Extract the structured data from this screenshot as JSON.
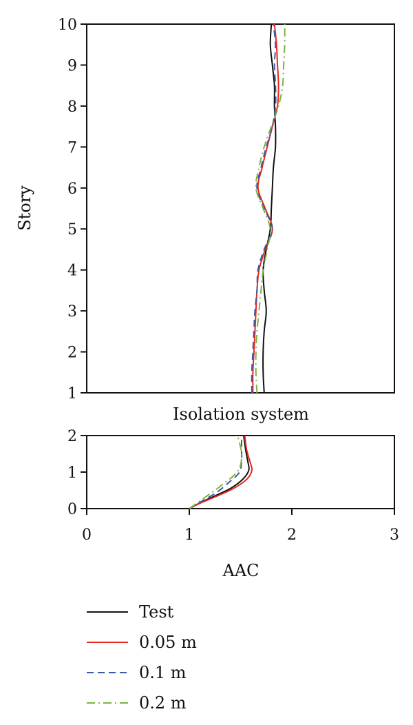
{
  "chart_data": [
    {
      "type": "line",
      "panel": "upper",
      "xlabel": "",
      "ylabel": "Story",
      "xlim": [
        0,
        3
      ],
      "ylim": [
        1,
        10
      ],
      "yticks": [
        "1",
        "2",
        "3",
        "4",
        "5",
        "6",
        "7",
        "8",
        "9",
        "10"
      ],
      "grid": false,
      "series": [
        {
          "name": "Test",
          "color": "#111111",
          "dash": "solid",
          "points": [
            [
              1.73,
              1.0
            ],
            [
              1.72,
              1.5
            ],
            [
              1.72,
              2.0
            ],
            [
              1.73,
              2.5
            ],
            [
              1.75,
              3.0
            ],
            [
              1.73,
              3.5
            ],
            [
              1.72,
              4.0
            ],
            [
              1.75,
              4.5
            ],
            [
              1.79,
              5.0
            ],
            [
              1.8,
              5.5
            ],
            [
              1.81,
              6.0
            ],
            [
              1.82,
              6.5
            ],
            [
              1.84,
              7.0
            ],
            [
              1.84,
              7.5
            ],
            [
              1.83,
              8.0
            ],
            [
              1.83,
              8.5
            ],
            [
              1.81,
              9.0
            ],
            [
              1.79,
              9.5
            ],
            [
              1.8,
              10.0
            ]
          ]
        },
        {
          "name": "0.05 m",
          "color": "#e8261c",
          "dash": "solid",
          "points": [
            [
              1.62,
              1.0
            ],
            [
              1.62,
              1.5
            ],
            [
              1.63,
              2.0
            ],
            [
              1.64,
              2.5
            ],
            [
              1.65,
              3.0
            ],
            [
              1.66,
              3.5
            ],
            [
              1.68,
              4.0
            ],
            [
              1.74,
              4.5
            ],
            [
              1.81,
              5.0
            ],
            [
              1.74,
              5.5
            ],
            [
              1.67,
              6.0
            ],
            [
              1.71,
              6.5
            ],
            [
              1.76,
              7.0
            ],
            [
              1.81,
              7.5
            ],
            [
              1.86,
              8.0
            ],
            [
              1.87,
              8.5
            ],
            [
              1.86,
              9.0
            ],
            [
              1.85,
              9.5
            ],
            [
              1.83,
              10.0
            ]
          ]
        },
        {
          "name": "0.1 m",
          "color": "#3c5aa8",
          "dash": "dashed",
          "points": [
            [
              1.61,
              1.0
            ],
            [
              1.61,
              1.5
            ],
            [
              1.62,
              2.0
            ],
            [
              1.63,
              2.5
            ],
            [
              1.64,
              3.0
            ],
            [
              1.66,
              3.5
            ],
            [
              1.67,
              4.0
            ],
            [
              1.73,
              4.5
            ],
            [
              1.81,
              5.0
            ],
            [
              1.73,
              5.5
            ],
            [
              1.66,
              6.0
            ],
            [
              1.7,
              6.5
            ],
            [
              1.75,
              7.0
            ],
            [
              1.81,
              7.5
            ],
            [
              1.84,
              8.0
            ],
            [
              1.84,
              8.5
            ],
            [
              1.83,
              9.0
            ],
            [
              1.84,
              9.5
            ],
            [
              1.82,
              10.0
            ]
          ]
        },
        {
          "name": "0.2 m",
          "color": "#7db342",
          "dash": "dashdot",
          "points": [
            [
              1.66,
              1.0
            ],
            [
              1.65,
              1.5
            ],
            [
              1.65,
              2.0
            ],
            [
              1.66,
              2.5
            ],
            [
              1.68,
              3.0
            ],
            [
              1.7,
              3.5
            ],
            [
              1.72,
              4.0
            ],
            [
              1.76,
              4.5
            ],
            [
              1.79,
              5.0
            ],
            [
              1.72,
              5.5
            ],
            [
              1.65,
              6.0
            ],
            [
              1.68,
              6.5
            ],
            [
              1.73,
              7.0
            ],
            [
              1.8,
              7.5
            ],
            [
              1.87,
              8.0
            ],
            [
              1.91,
              8.5
            ],
            [
              1.92,
              9.0
            ],
            [
              1.93,
              9.5
            ],
            [
              1.93,
              10.0
            ]
          ]
        }
      ]
    },
    {
      "type": "line",
      "panel": "lower",
      "title": "Isolation system",
      "xlabel": "AAC",
      "ylabel": "",
      "xlim": [
        0,
        3
      ],
      "ylim": [
        0,
        2
      ],
      "xticks": [
        "0",
        "1",
        "2",
        "3"
      ],
      "yticks": [
        "0",
        "1",
        "2"
      ],
      "grid": false,
      "series": [
        {
          "name": "Test",
          "color": "#111111",
          "dash": "solid",
          "points": [
            [
              1.0,
              0.0
            ],
            [
              1.1,
              0.15
            ],
            [
              1.25,
              0.35
            ],
            [
              1.4,
              0.55
            ],
            [
              1.52,
              0.8
            ],
            [
              1.58,
              1.05
            ],
            [
              1.57,
              1.3
            ],
            [
              1.55,
              1.6
            ],
            [
              1.53,
              2.0
            ]
          ]
        },
        {
          "name": "0.05 m",
          "color": "#e8261c",
          "dash": "solid",
          "points": [
            [
              1.0,
              0.0
            ],
            [
              1.1,
              0.14
            ],
            [
              1.26,
              0.33
            ],
            [
              1.43,
              0.55
            ],
            [
              1.56,
              0.8
            ],
            [
              1.61,
              1.05
            ],
            [
              1.59,
              1.3
            ],
            [
              1.56,
              1.6
            ],
            [
              1.54,
              2.0
            ]
          ]
        },
        {
          "name": "0.1 m",
          "color": "#3c5aa8",
          "dash": "dashed",
          "points": [
            [
              1.0,
              0.0
            ],
            [
              1.12,
              0.2
            ],
            [
              1.27,
              0.45
            ],
            [
              1.4,
              0.75
            ],
            [
              1.49,
              1.0
            ],
            [
              1.51,
              1.3
            ],
            [
              1.51,
              1.6
            ],
            [
              1.51,
              2.0
            ]
          ]
        },
        {
          "name": "0.2 m",
          "color": "#7db342",
          "dash": "dashdot",
          "points": [
            [
              1.0,
              0.0
            ],
            [
              1.15,
              0.3
            ],
            [
              1.32,
              0.65
            ],
            [
              1.45,
              0.95
            ],
            [
              1.5,
              1.2
            ],
            [
              1.51,
              1.5
            ],
            [
              1.49,
              1.8
            ],
            [
              1.47,
              2.0
            ]
          ]
        }
      ]
    }
  ],
  "legend": {
    "placement": "bottom",
    "entries": [
      "Test",
      "0.05 m",
      "0.1 m",
      "0.2 m"
    ]
  }
}
